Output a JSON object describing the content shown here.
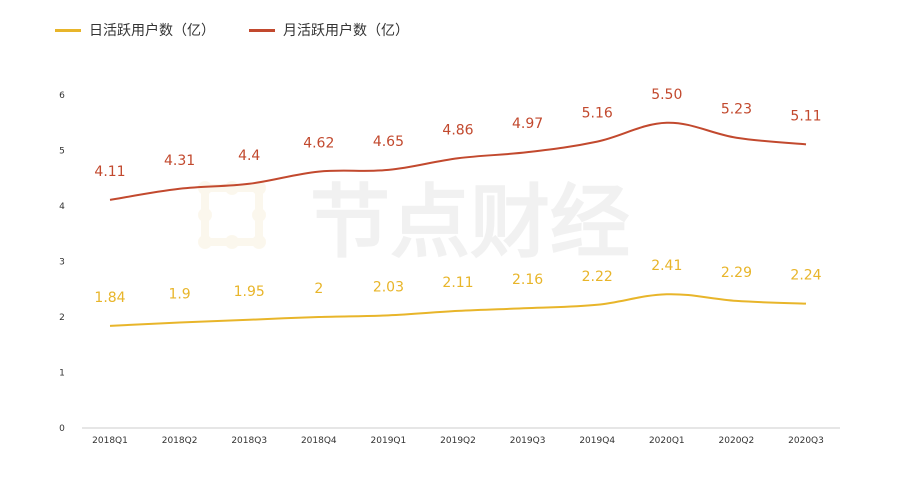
{
  "chart_data": {
    "type": "line",
    "categories": [
      "2018Q1",
      "2018Q2",
      "2018Q3",
      "2018Q4",
      "2019Q1",
      "2019Q2",
      "2019Q3",
      "2019Q4",
      "2020Q1",
      "2020Q2",
      "2020Q3"
    ],
    "series": [
      {
        "name": "日活跃用户数（亿）",
        "color": "#e8b52a",
        "values": [
          1.84,
          1.9,
          1.95,
          2,
          2.03,
          2.11,
          2.16,
          2.22,
          2.41,
          2.29,
          2.24
        ],
        "labels": [
          "1.84",
          "1.9",
          "1.95",
          "2",
          "2.03",
          "2.11",
          "2.16",
          "2.22",
          "2.41",
          "2.29",
          "2.24"
        ]
      },
      {
        "name": "月活跃用户数（亿）",
        "color": "#c2492e",
        "values": [
          4.11,
          4.31,
          4.4,
          4.62,
          4.65,
          4.86,
          4.97,
          5.16,
          5.5,
          5.23,
          5.11
        ],
        "labels": [
          "4.11",
          "4.31",
          "4.4",
          "4.62",
          "4.65",
          "4.86",
          "4.97",
          "5.16",
          "5.50",
          "5.23",
          "5.11"
        ]
      }
    ],
    "yticks": [
      "0",
      "1",
      "2",
      "3",
      "4",
      "5",
      "6"
    ],
    "ylim": [
      0,
      6
    ],
    "legend_position": "top-left",
    "grid": false
  },
  "watermark": {
    "text": "节点财经"
  }
}
